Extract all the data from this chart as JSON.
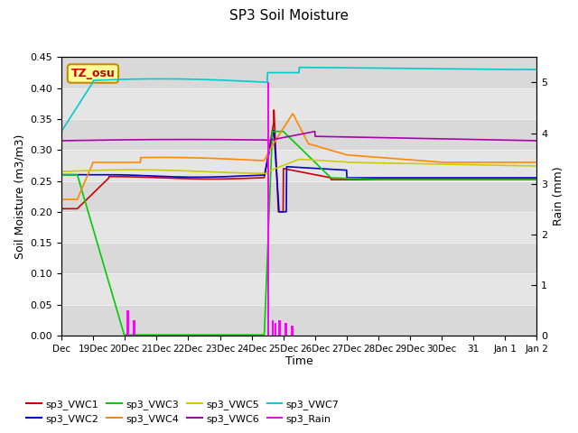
{
  "title": "SP3 Soil Moisture",
  "ylabel_left": "Soil Moisture (m3/m3)",
  "ylabel_right": "Rain (mm)",
  "xlabel": "Time",
  "xlim_days": [
    0,
    15
  ],
  "ylim_left": [
    0,
    0.45
  ],
  "ylim_right": [
    0,
    5.5
  ],
  "background_color": "#ffffff",
  "annotation_text": "TZ_osu",
  "annotation_color": "#cc0000",
  "annotation_bg": "#ffff99",
  "annotation_border": "#cc8800",
  "xtick_labels": [
    "Dec",
    "19Dec",
    "20Dec",
    "21Dec",
    "22Dec",
    "23Dec",
    "24Dec",
    "25Dec",
    "26Dec",
    "27Dec",
    "28Dec",
    "29Dec",
    "30Dec",
    "31",
    "Jan 1",
    "Jan 2"
  ],
  "series_colors": {
    "sp3_VWC1": "#cc0000",
    "sp3_VWC2": "#0000cc",
    "sp3_VWC3": "#00cc00",
    "sp3_VWC4": "#ff8800",
    "sp3_VWC5": "#cccc00",
    "sp3_VWC6": "#aa00aa",
    "sp3_VWC7": "#00cccc",
    "sp3_Rain": "#ff00ff"
  }
}
